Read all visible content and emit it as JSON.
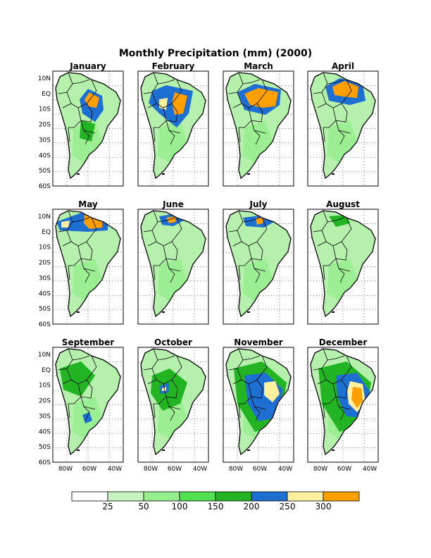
{
  "title": "Monthly Precipitation (mm) (2000)",
  "months": [
    "January",
    "February",
    "March",
    "April",
    "May",
    "June",
    "July",
    "August",
    "September",
    "October",
    "November",
    "December"
  ],
  "lat_ticks": [
    "10N",
    "EQ",
    "10S",
    "20S",
    "30S",
    "40S",
    "50S",
    "60S"
  ],
  "lon_ticks": [
    "80W",
    "60W",
    "40W"
  ],
  "legend": {
    "colors": [
      "#ffffff",
      "#c6f5c0",
      "#96ee8c",
      "#50e050",
      "#22b422",
      "#1e6fd2",
      "#fff0a0",
      "#ffa000"
    ],
    "labels": [
      "25",
      "50",
      "100",
      "150",
      "200",
      "250",
      "300"
    ]
  },
  "rain_patterns": [
    {
      "month": "January",
      "blobs": [
        [
          "#1e6fd2",
          [
            [
              50,
              25
            ],
            [
              70,
              35
            ],
            [
              72,
              55
            ],
            [
              60,
              72
            ],
            [
              42,
              60
            ],
            [
              38,
              40
            ]
          ]
        ],
        [
          "#ffa000",
          [
            [
              52,
              30
            ],
            [
              66,
              38
            ],
            [
              62,
              52
            ],
            [
              50,
              50
            ],
            [
              45,
              40
            ]
          ]
        ],
        [
          "#22b422",
          [
            [
              40,
              70
            ],
            [
              60,
              75
            ],
            [
              55,
              100
            ],
            [
              38,
              95
            ]
          ]
        ]
      ]
    },
    {
      "month": "February",
      "blobs": [
        [
          "#1e6fd2",
          [
            [
              20,
              28
            ],
            [
              40,
              20
            ],
            [
              78,
              28
            ],
            [
              72,
              60
            ],
            [
              55,
              80
            ],
            [
              30,
              60
            ],
            [
              15,
              45
            ]
          ]
        ],
        [
          "#ffa000",
          [
            [
              52,
              30
            ],
            [
              70,
              35
            ],
            [
              64,
              60
            ],
            [
              52,
              62
            ],
            [
              48,
              45
            ]
          ]
        ],
        [
          "#fff0a0",
          [
            [
              30,
              40
            ],
            [
              42,
              38
            ],
            [
              40,
              55
            ],
            [
              30,
              52
            ]
          ]
        ]
      ]
    },
    {
      "month": "March",
      "blobs": [
        [
          "#1e6fd2",
          [
            [
              20,
              30
            ],
            [
              45,
              18
            ],
            [
              82,
              26
            ],
            [
              80,
              48
            ],
            [
              60,
              62
            ],
            [
              30,
              55
            ]
          ]
        ],
        [
          "#ffa000",
          [
            [
              30,
              32
            ],
            [
              50,
              24
            ],
            [
              78,
              30
            ],
            [
              74,
              50
            ],
            [
              55,
              52
            ],
            [
              38,
              48
            ]
          ]
        ]
      ]
    },
    {
      "month": "April",
      "blobs": [
        [
          "#1e6fd2",
          [
            [
              25,
              22
            ],
            [
              45,
              10
            ],
            [
              78,
              18
            ],
            [
              82,
              42
            ],
            [
              60,
              48
            ],
            [
              30,
              42
            ]
          ]
        ],
        [
          "#ffa000",
          [
            [
              35,
              22
            ],
            [
              52,
              14
            ],
            [
              72,
              22
            ],
            [
              70,
              38
            ],
            [
              50,
              36
            ],
            [
              38,
              34
            ]
          ]
        ]
      ]
    },
    {
      "month": "May",
      "blobs": [
        [
          "#1e6fd2",
          [
            [
              5,
              18
            ],
            [
              40,
              5
            ],
            [
              78,
              12
            ],
            [
              78,
              30
            ],
            [
              50,
              32
            ],
            [
              10,
              30
            ]
          ]
        ],
        [
          "#ffa000",
          [
            [
              45,
              8
            ],
            [
              70,
              12
            ],
            [
              70,
              26
            ],
            [
              52,
              28
            ],
            [
              44,
              20
            ]
          ]
        ],
        [
          "#fff0a0",
          [
            [
              12,
              18
            ],
            [
              24,
              16
            ],
            [
              22,
              26
            ],
            [
              12,
              26
            ]
          ]
        ]
      ]
    },
    {
      "month": "June",
      "blobs": [
        [
          "#1e6fd2",
          [
            [
              30,
              10
            ],
            [
              55,
              6
            ],
            [
              65,
              16
            ],
            [
              50,
              24
            ],
            [
              34,
              22
            ]
          ]
        ],
        [
          "#ffa000",
          [
            [
              40,
              12
            ],
            [
              52,
              10
            ],
            [
              54,
              18
            ],
            [
              44,
              20
            ]
          ]
        ]
      ]
    },
    {
      "month": "July",
      "blobs": [
        [
          "#1e6fd2",
          [
            [
              28,
              12
            ],
            [
              60,
              8
            ],
            [
              72,
              18
            ],
            [
              58,
              26
            ],
            [
              32,
              24
            ]
          ]
        ],
        [
          "#ffa000",
          [
            [
              46,
              12
            ],
            [
              58,
              12
            ],
            [
              56,
              20
            ],
            [
              48,
              22
            ]
          ]
        ]
      ]
    },
    {
      "month": "August",
      "blobs": [
        [
          "#22b422",
          [
            [
              30,
              10
            ],
            [
              55,
              8
            ],
            [
              60,
              20
            ],
            [
              40,
              25
            ]
          ]
        ]
      ]
    },
    {
      "month": "September",
      "blobs": [
        [
          "#22b422",
          [
            [
              10,
              30
            ],
            [
              40,
              20
            ],
            [
              60,
              40
            ],
            [
              40,
              70
            ],
            [
              15,
              60
            ]
          ]
        ],
        [
          "#1e6fd2",
          [
            [
              42,
              96
            ],
            [
              52,
              92
            ],
            [
              56,
              104
            ],
            [
              46,
              108
            ]
          ]
        ]
      ]
    },
    {
      "month": "October",
      "blobs": [
        [
          "#22b422",
          [
            [
              20,
              40
            ],
            [
              45,
              30
            ],
            [
              70,
              50
            ],
            [
              60,
              80
            ],
            [
              35,
              90
            ],
            [
              18,
              65
            ]
          ]
        ],
        [
          "#1e6fd2",
          [
            [
              30,
              55
            ],
            [
              44,
              50
            ],
            [
              44,
              64
            ],
            [
              32,
              66
            ]
          ]
        ],
        [
          "#fff0a0",
          [
            [
              34,
              58
            ],
            [
              40,
              56
            ],
            [
              40,
              62
            ],
            [
              34,
              62
            ]
          ]
        ]
      ]
    },
    {
      "month": "November",
      "blobs": [
        [
          "#22b422",
          [
            [
              15,
              30
            ],
            [
              55,
              20
            ],
            [
              90,
              50
            ],
            [
              80,
              110
            ],
            [
              45,
              120
            ],
            [
              20,
              80
            ]
          ]
        ],
        [
          "#1e6fd2",
          [
            [
              30,
              40
            ],
            [
              60,
              36
            ],
            [
              85,
              60
            ],
            [
              75,
              100
            ],
            [
              50,
              105
            ],
            [
              35,
              80
            ]
          ]
        ],
        [
          "#fff0a0",
          [
            [
              58,
              50
            ],
            [
              74,
              48
            ],
            [
              80,
              66
            ],
            [
              70,
              78
            ],
            [
              58,
              68
            ]
          ]
        ]
      ]
    },
    {
      "month": "December",
      "blobs": [
        [
          "#22b422",
          [
            [
              15,
              30
            ],
            [
              55,
              20
            ],
            [
              90,
              50
            ],
            [
              80,
              110
            ],
            [
              45,
              120
            ],
            [
              20,
              80
            ]
          ]
        ],
        [
          "#1e6fd2",
          [
            [
              40,
              40
            ],
            [
              70,
              36
            ],
            [
              88,
              62
            ],
            [
              80,
              100
            ],
            [
              55,
              98
            ],
            [
              42,
              70
            ]
          ]
        ],
        [
          "#fff0a0",
          [
            [
              60,
              48
            ],
            [
              78,
              52
            ],
            [
              82,
              78
            ],
            [
              70,
              92
            ],
            [
              58,
              80
            ],
            [
              56,
              62
            ]
          ]
        ],
        [
          "#ffa000",
          [
            [
              64,
              56
            ],
            [
              76,
              58
            ],
            [
              78,
              76
            ],
            [
              70,
              86
            ],
            [
              62,
              74
            ]
          ]
        ]
      ]
    }
  ]
}
